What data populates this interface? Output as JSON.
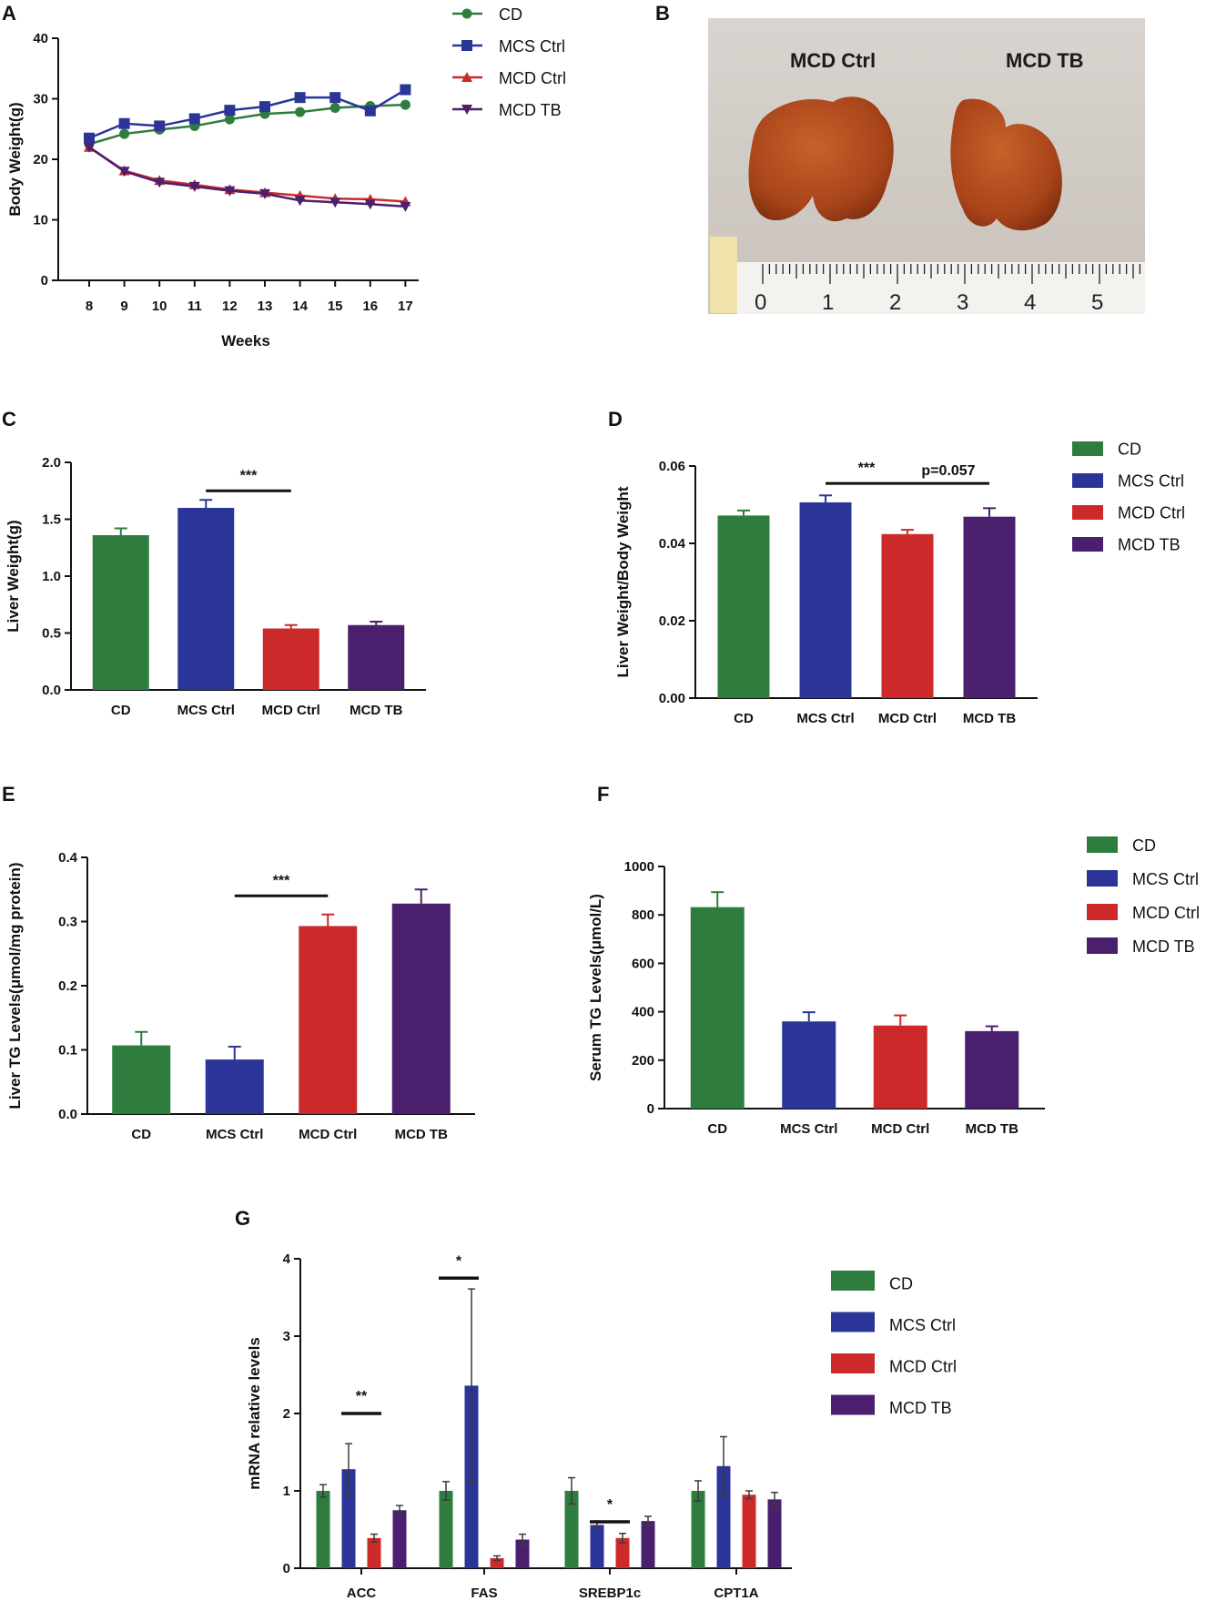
{
  "colors": {
    "CD": "#2e7d3e",
    "MCS Ctrl": "#2b3598",
    "MCD Ctrl": "#cc2a2a",
    "MCD TB": "#4a1f6e"
  },
  "chart_data": [
    {
      "id": "A",
      "panel": "A",
      "type": "line",
      "xlabel": "Weeks",
      "ylabel": "Body Weight(g)",
      "ylim": [
        0,
        40
      ],
      "yticks": [
        0,
        10,
        20,
        30,
        40
      ],
      "x": [
        8,
        9,
        10,
        11,
        12,
        13,
        14,
        15,
        16,
        17
      ],
      "series": [
        {
          "name": "CD",
          "marker": "circle",
          "values": [
            22.5,
            24.2,
            24.9,
            25.5,
            26.6,
            27.5,
            27.8,
            28.5,
            28.8,
            29.0
          ]
        },
        {
          "name": "MCS Ctrl",
          "marker": "square",
          "values": [
            23.5,
            25.9,
            25.5,
            26.7,
            28.1,
            28.7,
            30.2,
            30.2,
            28.0,
            31.5
          ]
        },
        {
          "name": "MCD Ctrl",
          "marker": "triangle",
          "values": [
            22.0,
            18.1,
            16.5,
            15.8,
            15.0,
            14.5,
            14.0,
            13.5,
            13.4,
            13.0
          ]
        },
        {
          "name": "MCD TB",
          "marker": "triangle-down",
          "values": [
            22.0,
            18.0,
            16.2,
            15.5,
            14.8,
            14.3,
            13.2,
            12.9,
            12.6,
            12.2
          ]
        }
      ],
      "legend": "top-right"
    },
    {
      "id": "C",
      "panel": "C",
      "type": "bar",
      "xlabel": "",
      "ylabel": "Liver Weight(g)",
      "ylim": [
        0,
        2.0
      ],
      "yticks": [
        "0.0",
        "0.5",
        "1.0",
        "1.5",
        "2.0"
      ],
      "categories": [
        "CD",
        "MCS Ctrl",
        "MCD Ctrl",
        "MCD TB"
      ],
      "values": [
        1.36,
        1.6,
        0.54,
        0.57
      ],
      "errors": [
        0.06,
        0.07,
        0.03,
        0.03
      ],
      "annotations": [
        {
          "text": "***",
          "from": 1,
          "to": 2,
          "y": 1.75
        }
      ]
    },
    {
      "id": "D",
      "panel": "D",
      "type": "bar",
      "xlabel": "",
      "ylabel": "Liver Weight/Body Weight",
      "ylim": [
        0,
        0.06
      ],
      "yticks": [
        "0.00",
        "0.02",
        "0.04",
        "0.06"
      ],
      "categories": [
        "CD",
        "MCS Ctrl",
        "MCD Ctrl",
        "MCD TB"
      ],
      "values": [
        0.0472,
        0.0506,
        0.0424,
        0.0469
      ],
      "errors": [
        0.0013,
        0.0018,
        0.0011,
        0.0022
      ],
      "annotations": [
        {
          "text": "***",
          "from": 1,
          "to": 2,
          "y": 0.0555
        },
        {
          "text": "p=0.057",
          "from": 2,
          "to": 3,
          "y": 0.0555,
          "italic": false
        }
      ],
      "legend": "right"
    },
    {
      "id": "E",
      "panel": "E",
      "type": "bar",
      "xlabel": "",
      "ylabel": "Liver TG Levels(μmol/mg protein)",
      "ylim": [
        0,
        0.4
      ],
      "yticks": [
        "0.0",
        "0.1",
        "0.2",
        "0.3",
        "0.4"
      ],
      "categories": [
        "CD",
        "MCS Ctrl",
        "MCD Ctrl",
        "MCD TB"
      ],
      "values": [
        0.107,
        0.085,
        0.293,
        0.328
      ],
      "errors": [
        0.021,
        0.02,
        0.018,
        0.022
      ],
      "annotations": [
        {
          "text": "***",
          "from": 1,
          "to": 2,
          "y": 0.34
        }
      ]
    },
    {
      "id": "F",
      "panel": "F",
      "type": "bar",
      "xlabel": "",
      "ylabel": "Serum TG Levels(μmol/L)",
      "ylim": [
        0,
        1000
      ],
      "yticks": [
        "0",
        "200",
        "400",
        "600",
        "800",
        "1000"
      ],
      "categories": [
        "CD",
        "MCS Ctrl",
        "MCD Ctrl",
        "MCD TB"
      ],
      "values": [
        832,
        360,
        343,
        320
      ],
      "errors": [
        62,
        38,
        42,
        20
      ],
      "annotations": [],
      "legend": "right"
    },
    {
      "id": "G",
      "panel": "G",
      "type": "bar",
      "xlabel": "",
      "ylabel": "mRNA relative levels",
      "ylim": [
        0,
        4
      ],
      "yticks": [
        "0",
        "1",
        "2",
        "3",
        "4"
      ],
      "categories": [
        "ACC",
        "FAS",
        "SREBP1c",
        "CPT1A"
      ],
      "series": [
        {
          "name": "CD",
          "values": [
            1.0,
            1.0,
            1.0,
            1.0
          ],
          "errors": [
            0.08,
            0.12,
            0.17,
            0.13
          ]
        },
        {
          "name": "MCS Ctrl",
          "values": [
            1.28,
            2.36,
            0.56,
            1.32
          ],
          "errors": [
            0.33,
            1.25,
            0.05,
            0.38
          ]
        },
        {
          "name": "MCD Ctrl",
          "values": [
            0.39,
            0.13,
            0.39,
            0.95
          ],
          "errors": [
            0.05,
            0.03,
            0.06,
            0.05
          ]
        },
        {
          "name": "MCD TB",
          "values": [
            0.75,
            0.37,
            0.61,
            0.89
          ],
          "errors": [
            0.06,
            0.07,
            0.06,
            0.09
          ]
        }
      ],
      "annotations": [
        {
          "text": "**",
          "group": 0,
          "from": 1,
          "to": 2,
          "y": 2.0
        },
        {
          "text": "*",
          "group": 1,
          "from": 0,
          "to": 1,
          "y": 3.75
        },
        {
          "text": "*",
          "group": 2,
          "from": 1,
          "to": 2,
          "y": 0.6
        }
      ],
      "legend": "right"
    }
  ],
  "photo": {
    "panel": "B",
    "label_left": "MCD Ctrl",
    "label_right": "MCD TB",
    "ruler_numbers": [
      "0",
      "1",
      "2",
      "3",
      "4",
      "5"
    ]
  }
}
